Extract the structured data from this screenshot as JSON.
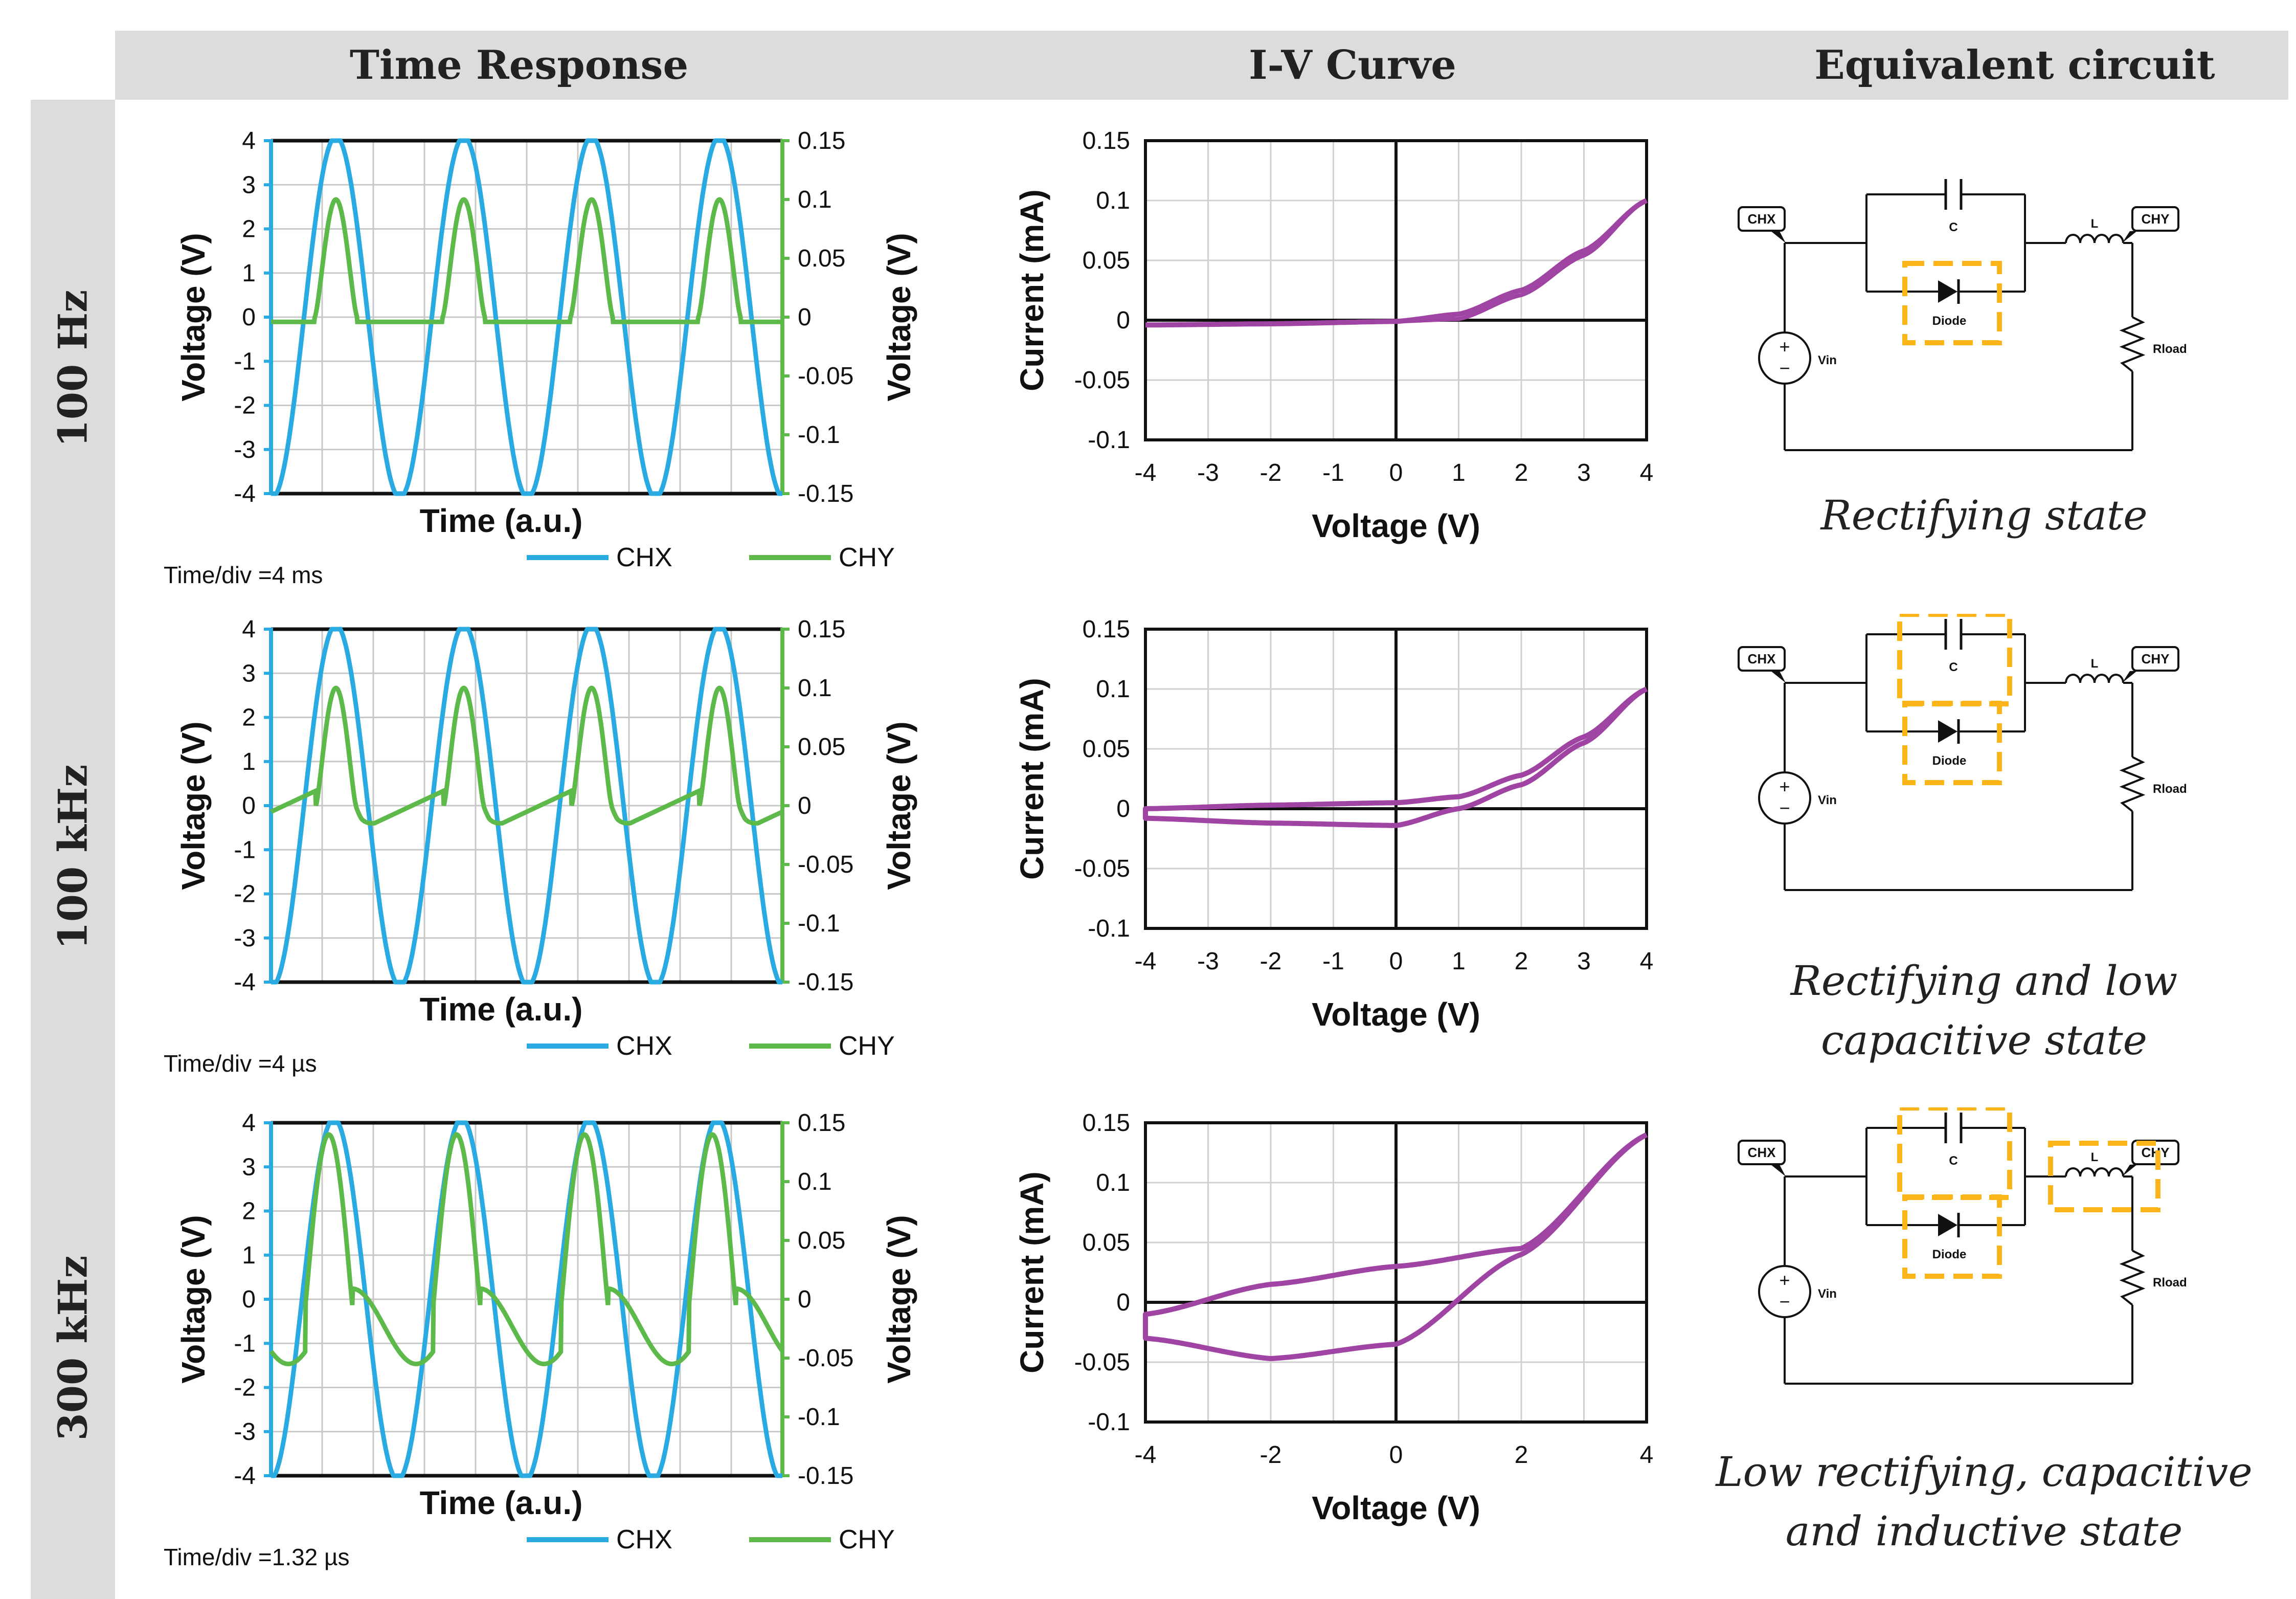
{
  "headers": {
    "time_response": "Time Response",
    "iv_curve": "I-V Curve",
    "equivalent_circuit": "Equivalent circuit"
  },
  "rows": [
    {
      "label": "100 Hz",
      "time_div": "Time/div =4 ms",
      "caption": "Rectifying state"
    },
    {
      "label": "100 kHz",
      "time_div": "Time/div =4 µs",
      "caption": "Rectifying and low capacitive state"
    },
    {
      "label": "300 kHz",
      "time_div": "Time/div =1.32 µs",
      "caption": "Low rectifying, capacitive and inductive state"
    }
  ],
  "circuit": {
    "chx": "CHX",
    "chy": "CHY",
    "c": "C",
    "l": "L",
    "diode": "Diode",
    "vin": "Vin",
    "rload": "Rload",
    "plus": "+",
    "minus": "−"
  },
  "colors": {
    "chx": "#29abe2",
    "chy": "#5cb94a",
    "iv": "#a044a3",
    "highlight": "#fbb518",
    "header": "#dcdcdc"
  },
  "chart_data": [
    {
      "type": "line",
      "title": "Time Response 100 Hz",
      "xlabel": "Time (a.u.)",
      "ylabel": "Voltage (V)",
      "y2label": "Voltage (V)",
      "ylim": [
        -4,
        4
      ],
      "y2lim": [
        -0.15,
        0.15
      ],
      "yticks": [
        "4",
        "3",
        "2",
        "1",
        "0",
        "-1",
        "-2",
        "-3",
        "-4"
      ],
      "y2ticks": [
        "0.15",
        "0.1",
        "0.05",
        "0",
        "-0.05",
        "-0.1",
        "-0.15"
      ],
      "legend": [
        "CHX",
        "CHY"
      ],
      "series": [
        {
          "name": "CHX",
          "periods": 4,
          "amplitude_V": 3.9
        },
        {
          "name": "CHY",
          "peak": 0.1,
          "baseline": -0.004,
          "shape": "half-wave rectified"
        }
      ]
    },
    {
      "type": "line",
      "title": "Time Response 100 kHz",
      "xlabel": "Time (a.u.)",
      "ylabel": "Voltage (V)",
      "y2label": "Voltage (V)",
      "ylim": [
        -4,
        4
      ],
      "y2lim": [
        -0.15,
        0.15
      ],
      "yticks": [
        "4",
        "3",
        "2",
        "1",
        "0",
        "-1",
        "-2",
        "-3",
        "-4"
      ],
      "y2ticks": [
        "0.15",
        "0.1",
        "0.05",
        "0",
        "-0.05",
        "-0.1",
        "-0.15"
      ],
      "legend": [
        "CHX",
        "CHY"
      ],
      "series": [
        {
          "name": "CHX",
          "periods": 4,
          "amplitude_V": 3.9
        },
        {
          "name": "CHY",
          "peak": 0.1,
          "min": -0.015,
          "shape": "rectified with capacitive tail"
        }
      ]
    },
    {
      "type": "line",
      "title": "Time Response 300 kHz",
      "xlabel": "Time (a.u.)",
      "ylabel": "Voltage (V)",
      "y2label": "Voltage (V)",
      "ylim": [
        -4,
        4
      ],
      "y2lim": [
        -0.15,
        0.15
      ],
      "yticks": [
        "4",
        "3",
        "2",
        "1",
        "0",
        "-1",
        "-2",
        "-3",
        "-4"
      ],
      "y2ticks": [
        "0.15",
        "0.1",
        "0.05",
        "0",
        "-0.05",
        "-0.1",
        "-0.15"
      ],
      "legend": [
        "CHX",
        "CHY"
      ],
      "series": [
        {
          "name": "CHX",
          "periods": 4,
          "amplitude_V": 3.9
        },
        {
          "name": "CHY",
          "peak": 0.14,
          "min": -0.055,
          "shape": "distorted"
        }
      ]
    },
    {
      "type": "line",
      "title": "I-V Curve 100 Hz",
      "xlabel": "Voltage (V)",
      "ylabel": "Current (mA)",
      "xlim": [
        -4,
        4
      ],
      "ylim": [
        -0.1,
        0.15
      ],
      "xticks": [
        "-4",
        "-3",
        "-2",
        "-1",
        "0",
        "1",
        "2",
        "3",
        "4"
      ],
      "yticks": [
        "0.15",
        "0.1",
        "0.05",
        "0",
        "-0.05",
        "-0.1"
      ],
      "series": [
        {
          "name": "IV",
          "x": [
            -4,
            -2,
            0,
            1,
            2,
            3,
            4
          ],
          "y": [
            -0.004,
            -0.003,
            -0.001,
            0.005,
            0.025,
            0.058,
            0.1
          ]
        }
      ]
    },
    {
      "type": "line",
      "title": "I-V Curve 100 kHz",
      "xlabel": "Voltage (V)",
      "ylabel": "Current (mA)",
      "xlim": [
        -4,
        4
      ],
      "ylim": [
        -0.1,
        0.15
      ],
      "xticks": [
        "-4",
        "-3",
        "-2",
        "-1",
        "0",
        "1",
        "2",
        "3",
        "4"
      ],
      "yticks": [
        "0.15",
        "0.1",
        "0.05",
        "0",
        "-0.05",
        "-0.1"
      ],
      "series": [
        {
          "name": "IV (loop)",
          "x": [
            -4,
            -2,
            0,
            1,
            2,
            3,
            4
          ],
          "y_upper": [
            0.0,
            0.003,
            0.005,
            0.01,
            0.028,
            0.06,
            0.1
          ],
          "y_lower": [
            -0.008,
            -0.012,
            -0.014,
            0.0,
            0.02,
            0.055,
            0.1
          ]
        }
      ]
    },
    {
      "type": "line",
      "title": "I-V Curve 300 kHz",
      "xlabel": "Voltage (V)",
      "ylabel": "Current (mA)",
      "xlim": [
        -4,
        4
      ],
      "ylim": [
        -0.1,
        0.15
      ],
      "xticks": [
        "-4",
        "-2",
        "0",
        "2",
        "4"
      ],
      "yticks": [
        "0.15",
        "0.1",
        "0.05",
        "0",
        "-0.05",
        "-0.1"
      ],
      "series": [
        {
          "name": "IV (loop)",
          "x": [
            -4,
            -2,
            0,
            2,
            4
          ],
          "y_upper": [
            -0.01,
            0.015,
            0.03,
            0.045,
            0.14
          ],
          "y_lower": [
            -0.03,
            -0.047,
            -0.035,
            0.04,
            0.14
          ]
        }
      ]
    }
  ]
}
